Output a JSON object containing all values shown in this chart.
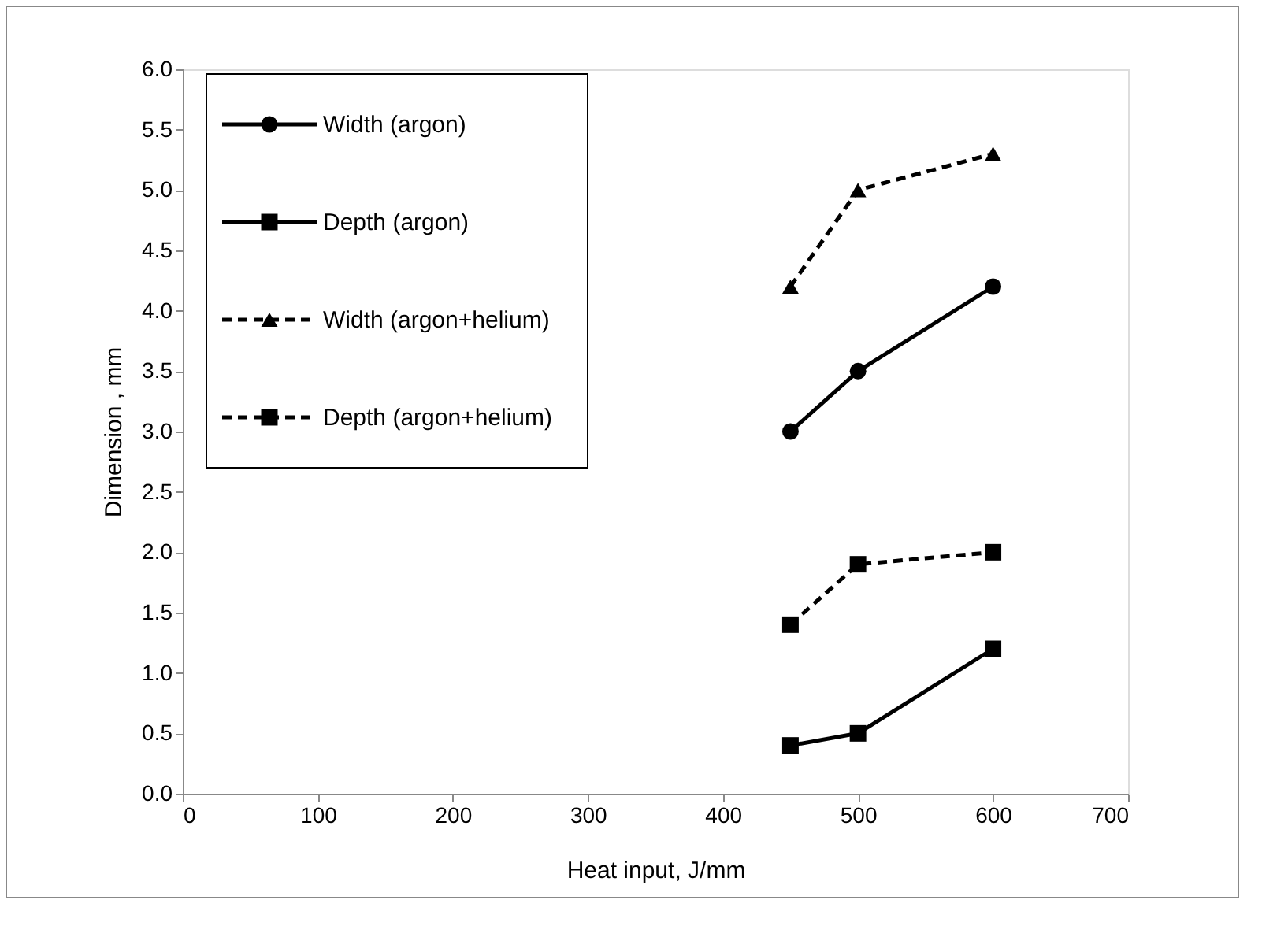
{
  "chart_data": {
    "type": "line",
    "xlabel": "Heat input, J/mm",
    "ylabel": "Dimension , mm",
    "xlim": [
      0,
      700
    ],
    "xticks": [
      0,
      100,
      200,
      300,
      400,
      500,
      600,
      700
    ],
    "ylim": [
      0,
      6
    ],
    "yticks": [
      {
        "value": 0,
        "label": "0.0"
      },
      {
        "value": 0.5,
        "label": "0.5"
      },
      {
        "value": 1,
        "label": "1.0"
      },
      {
        "value": 1.5,
        "label": "1.5"
      },
      {
        "value": 2,
        "label": "2.0"
      },
      {
        "value": 2.5,
        "label": "2.5"
      },
      {
        "value": 3,
        "label": "3.0"
      },
      {
        "value": 3.5,
        "label": "3.5"
      },
      {
        "value": 4,
        "label": "4.0"
      },
      {
        "value": 4.5,
        "label": "4.5"
      },
      {
        "value": 5,
        "label": "5.0"
      },
      {
        "value": 5.5,
        "label": "5.5"
      },
      {
        "value": 6,
        "label": "6.0"
      }
    ],
    "x": [
      450,
      500,
      600
    ],
    "grid": false,
    "legend": "top left",
    "series": [
      {
        "name": "Width (argon)",
        "color": "#000000",
        "marker": "circle",
        "line_style": "solid",
        "values": [
          3.0,
          3.5,
          4.2
        ]
      },
      {
        "name": "Depth (argon)",
        "color": "#000000",
        "marker": "square",
        "line_style": "solid",
        "values": [
          0.4,
          0.5,
          1.2
        ]
      },
      {
        "name": "Width (argon+helium)",
        "color": "#000000",
        "marker": "triangle",
        "line_style": "dashed",
        "values": [
          4.2,
          5.0,
          5.3
        ]
      },
      {
        "name": "Depth (argon+helium)",
        "color": "#000000",
        "marker": "square",
        "line_style": "dashed",
        "values": [
          1.4,
          1.9,
          2.0
        ]
      }
    ]
  }
}
